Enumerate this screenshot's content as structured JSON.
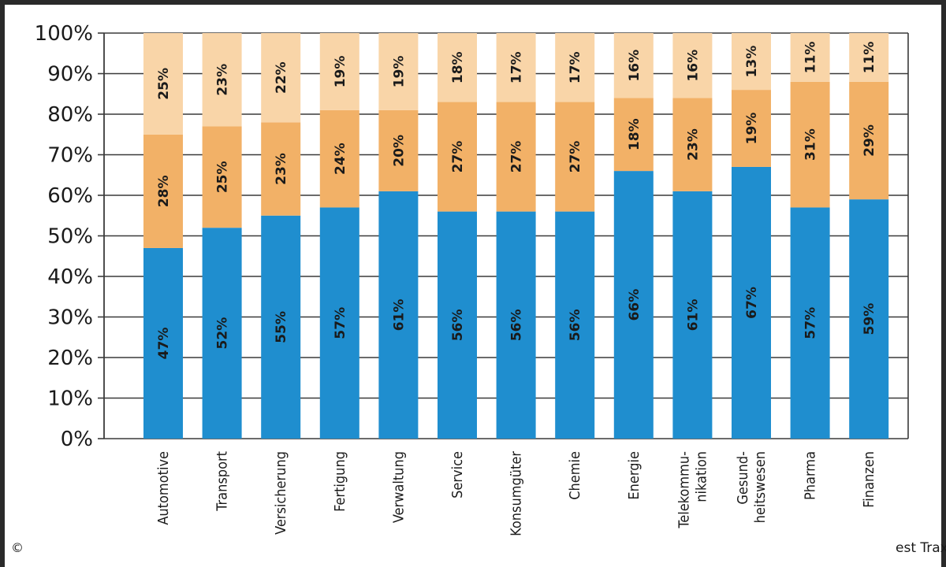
{
  "chart_data": {
    "type": "bar",
    "stacked": true,
    "orientation": "vertical",
    "categories": [
      [
        "Automotive"
      ],
      [
        "Transport"
      ],
      [
        "Versicherung"
      ],
      [
        "Fertigung"
      ],
      [
        "Verwaltung"
      ],
      [
        "Service"
      ],
      [
        "Konsumgüter"
      ],
      [
        "Chemie"
      ],
      [
        "Energie"
      ],
      [
        "Telekommu-",
        "nikation"
      ],
      [
        "Gesund-",
        "heitswesen"
      ],
      [
        "Pharma"
      ],
      [
        "Finanzen"
      ]
    ],
    "series": [
      {
        "color": "#1f8ecf",
        "values": [
          47,
          52,
          55,
          57,
          61,
          56,
          56,
          56,
          66,
          61,
          67,
          57,
          59
        ],
        "labels": [
          "47%",
          "52%",
          "55%",
          "57%",
          "61%",
          "56%",
          "56%",
          "56%",
          "66%",
          "61%",
          "67%",
          "57%",
          "59%"
        ]
      },
      {
        "color": "#f2b167",
        "values": [
          28,
          25,
          23,
          24,
          20,
          27,
          27,
          27,
          18,
          23,
          19,
          31,
          29
        ],
        "labels": [
          "28%",
          "25%",
          "23%",
          "24%",
          "20%",
          "27%",
          "27%",
          "27%",
          "18%",
          "23%",
          "19%",
          "31%",
          "29%"
        ]
      },
      {
        "color": "#f9d5a8",
        "values": [
          25,
          23,
          22,
          19,
          19,
          18,
          17,
          17,
          16,
          16,
          13,
          11,
          11
        ],
        "labels": [
          "25%",
          "23%",
          "22%",
          "19%",
          "19%",
          "18%",
          "17%",
          "17%",
          "16%",
          "16%",
          "13%",
          "11%",
          "11%"
        ]
      }
    ],
    "ylim": [
      0,
      100
    ],
    "yticks": [
      0,
      10,
      20,
      30,
      40,
      50,
      60,
      70,
      80,
      90,
      100
    ],
    "ytick_labels": [
      "0%",
      "10%",
      "20%",
      "30%",
      "40%",
      "50%",
      "60%",
      "70%",
      "80%",
      "90%",
      "100%"
    ],
    "grid": "horizontal",
    "legend": "none"
  },
  "footer": {
    "copyright_symbol": "©",
    "source_fragment": "est Trax"
  }
}
